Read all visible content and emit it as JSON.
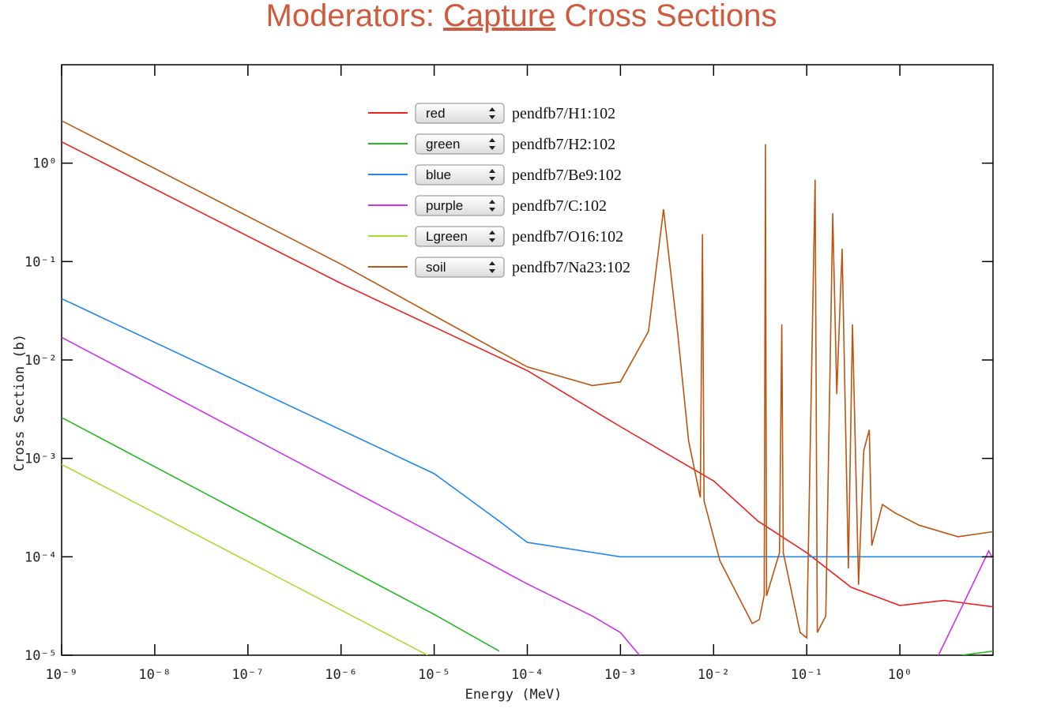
{
  "chart_data": {
    "type": "line",
    "title": [
      "Moderators: ",
      "Capture",
      " Cross Sections"
    ],
    "x_label": "Energy (MeV)",
    "y_label": "Cross Section (b)",
    "log_x": true,
    "log_y": true,
    "xlim": [
      1e-09,
      10
    ],
    "ylim": [
      1e-05,
      10
    ],
    "xticks": [
      {
        "value": 1e-09,
        "label": "10⁻⁹"
      },
      {
        "value": 1e-08,
        "label": "10⁻⁸"
      },
      {
        "value": 1e-07,
        "label": "10⁻⁷"
      },
      {
        "value": 1e-06,
        "label": "10⁻⁶"
      },
      {
        "value": 1e-05,
        "label": "10⁻⁵"
      },
      {
        "value": 0.0001,
        "label": "10⁻⁴"
      },
      {
        "value": 0.001,
        "label": "10⁻³"
      },
      {
        "value": 0.01,
        "label": "10⁻²"
      },
      {
        "value": 0.1,
        "label": "10⁻¹"
      },
      {
        "value": 1,
        "label": "10⁰"
      }
    ],
    "yticks": [
      {
        "value": 1e-05,
        "label": "10⁻⁵"
      },
      {
        "value": 0.0001,
        "label": "10⁻⁴"
      },
      {
        "value": 0.001,
        "label": "10⁻³"
      },
      {
        "value": 0.01,
        "label": "10⁻²"
      },
      {
        "value": 0.1,
        "label": "10⁻¹"
      },
      {
        "value": 1,
        "label": "10⁰"
      }
    ],
    "series": [
      {
        "name": "pendfb7/H1:102",
        "color_name": "red",
        "color": "#ee2222",
        "x": [
          1e-09,
          1e-06,
          0.0001,
          0.001,
          0.01,
          0.03,
          0.1,
          0.3,
          1,
          3,
          10
        ],
        "values": [
          1.65,
          0.06,
          0.0078,
          0.0021,
          0.00059,
          0.00023,
          0.00011,
          4.9e-05,
          3.2e-05,
          3.6e-05,
          3.1e-05
        ]
      },
      {
        "name": "pendfb7/H2:102",
        "color_name": "green",
        "color": "#22bb22",
        "x": [
          1e-09,
          1e-05,
          5e-05,
          1,
          4.6,
          10
        ],
        "values": [
          0.0026,
          2.6e-05,
          1.1e-05,
          null,
          1e-05,
          1.1e-05
        ]
      },
      {
        "name": "pendfb7/Be9:102",
        "color_name": "blue",
        "color": "#2288ee",
        "x": [
          1e-09,
          1e-05,
          5e-05,
          0.0001,
          0.001,
          10
        ],
        "values": [
          0.042,
          0.0007,
          0.00023,
          0.00014,
          0.0001,
          0.0001
        ]
      },
      {
        "name": "pendfb7/C:102",
        "color_name": "purple",
        "color": "#cc33ee",
        "x": [
          1e-09,
          1e-05,
          0.0001,
          0.0005,
          0.001,
          0.0016,
          2,
          2.6,
          5,
          9,
          10
        ],
        "values": [
          0.017,
          0.00017,
          5.3e-05,
          2.5e-05,
          1.7e-05,
          1e-05,
          null,
          1e-05,
          3.6e-05,
          0.000115,
          9.5e-05
        ]
      },
      {
        "name": "pendfb7/O16:102",
        "color_name": "Lgreen",
        "color": "#aadd33",
        "x": [
          1e-09,
          8.5e-06
        ],
        "values": [
          0.00087,
          1e-05
        ]
      },
      {
        "name": "pendfb7/Na23:102",
        "color_name": "soil",
        "color": "#bb5511",
        "x": [
          1e-09,
          1e-06,
          0.0001,
          0.0005,
          0.001,
          0.002,
          0.0029,
          0.0041,
          0.0054,
          0.0072,
          0.0076,
          0.0079,
          0.0117,
          0.026,
          0.031,
          0.035,
          0.036,
          0.037,
          0.051,
          0.054,
          0.056,
          0.085,
          0.1,
          0.123,
          0.13,
          0.16,
          0.19,
          0.21,
          0.24,
          0.28,
          0.31,
          0.36,
          0.41,
          0.47,
          0.5,
          0.65,
          0.88,
          1.6,
          4.2,
          10
        ],
        "values": [
          2.7,
          0.094,
          0.0085,
          0.0055,
          0.006,
          0.0195,
          0.34,
          0.0195,
          0.0015,
          0.0004,
          0.19,
          0.00037,
          9.1e-05,
          2.1e-05,
          2.3e-05,
          4.1e-05,
          1.56,
          4e-05,
          0.00011,
          0.023,
          0.00011,
          1.7e-05,
          1.5e-05,
          0.68,
          1.7e-05,
          2.5e-05,
          0.31,
          0.0045,
          0.135,
          7.6e-05,
          0.023,
          5.2e-05,
          0.0012,
          0.00195,
          0.00013,
          0.00034,
          0.00028,
          0.00021,
          0.00016,
          0.00018
        ]
      }
    ]
  }
}
